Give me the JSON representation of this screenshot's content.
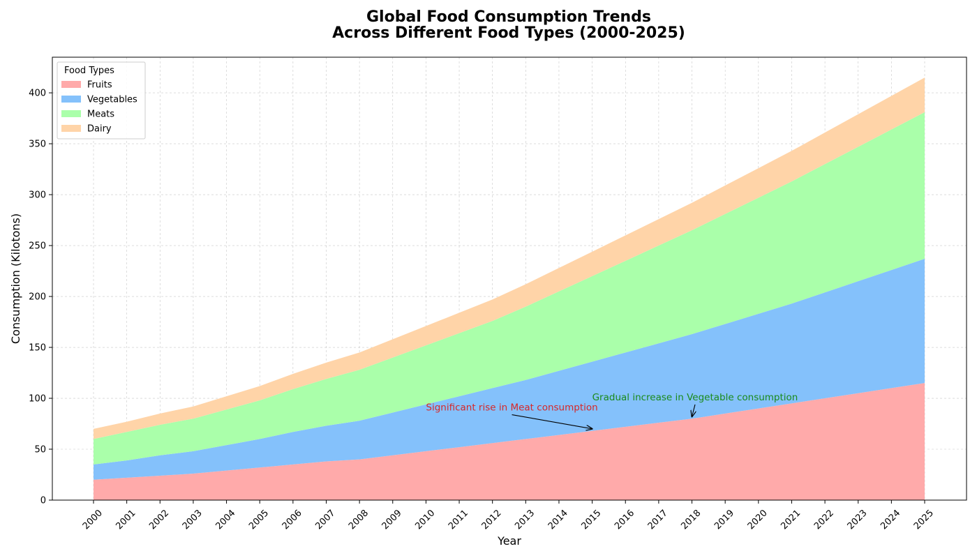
{
  "chart_data": {
    "type": "area",
    "stacked": true,
    "title_lines": [
      "Global Food Consumption Trends",
      "Across Different Food Types (2000-2025)"
    ],
    "xlabel": "Year",
    "ylabel": "Consumption (Kilotons)",
    "x": [
      "2000",
      "2001",
      "2002",
      "2003",
      "2004",
      "2005",
      "2006",
      "2007",
      "2008",
      "2009",
      "2010",
      "2011",
      "2012",
      "2013",
      "2014",
      "2015",
      "2016",
      "2017",
      "2018",
      "2019",
      "2020",
      "2021",
      "2022",
      "2023",
      "2024",
      "2025"
    ],
    "ylim": [
      0,
      435
    ],
    "yticks": [
      0,
      50,
      100,
      150,
      200,
      250,
      300,
      350,
      400
    ],
    "grid": true,
    "series": [
      {
        "name": "Fruits",
        "color": "#ffaaaa",
        "values": [
          20,
          22,
          24,
          26,
          29,
          32,
          35,
          38,
          40,
          44,
          48,
          52,
          56,
          60,
          64,
          68,
          72,
          76,
          80,
          85,
          90,
          95,
          100,
          105,
          110,
          115
        ]
      },
      {
        "name": "Vegetables",
        "color": "#84c1fb",
        "values": [
          15,
          17,
          20,
          22,
          25,
          28,
          32,
          35,
          38,
          42,
          46,
          50,
          54,
          58,
          63,
          68,
          73,
          78,
          83,
          88,
          93,
          98,
          104,
          110,
          116,
          122
        ]
      },
      {
        "name": "Meats",
        "color": "#aaffaa",
        "values": [
          25,
          28,
          30,
          32,
          35,
          38,
          42,
          46,
          50,
          54,
          58,
          62,
          66,
          72,
          78,
          84,
          90,
          96,
          102,
          108,
          114,
          120,
          126,
          132,
          138,
          144
        ]
      },
      {
        "name": "Dairy",
        "color": "#ffd4a8",
        "values": [
          10,
          10,
          11,
          12,
          13,
          14,
          15,
          16,
          17,
          18,
          19,
          20,
          21,
          22,
          23,
          24,
          25,
          26,
          27,
          28,
          29,
          30,
          31,
          32,
          33,
          34
        ]
      }
    ],
    "legend": {
      "title": "Food Types",
      "placement": "upper-left"
    },
    "annotations": [
      {
        "text": "Significant rise in Meat consumption",
        "color": "#d62728",
        "text_x": "2010",
        "text_y": 88,
        "arrow_x": "2015",
        "arrow_y": 70
      },
      {
        "text": "Gradual increase in Vegetable consumption",
        "color": "#1a8a1a",
        "text_x": "2015",
        "text_y": 98,
        "arrow_x": "2018",
        "arrow_y": 82
      }
    ]
  }
}
